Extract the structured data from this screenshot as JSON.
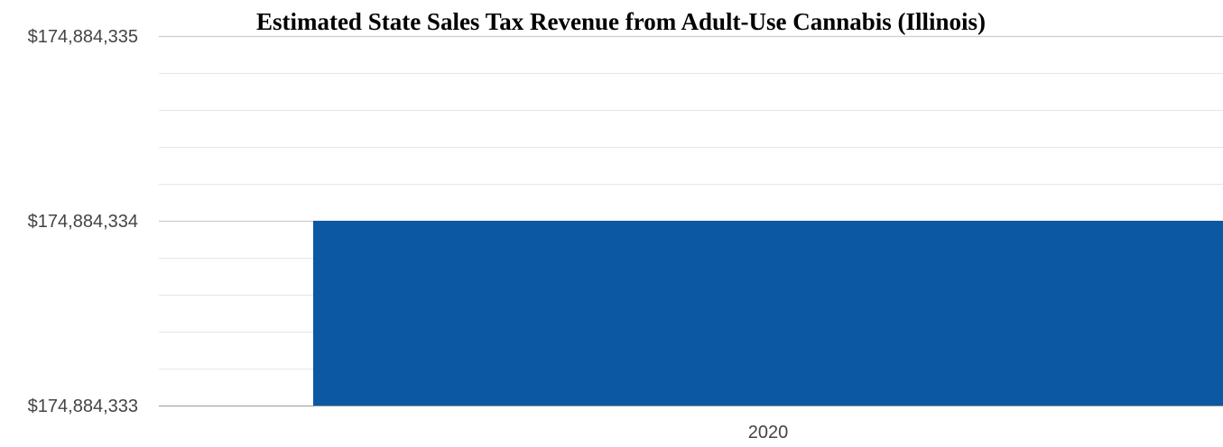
{
  "chart_data": {
    "type": "bar",
    "title": "Estimated State Sales Tax Revenue from Adult-Use Cannabis (Illinois)",
    "xlabel": "",
    "ylabel": "",
    "categories": [
      "2020"
    ],
    "values": [
      174884334
    ],
    "ylim": [
      174884333,
      174884335
    ],
    "y_tick_labels": [
      "$174,884,333",
      "$174,884,334",
      "$174,884,335"
    ],
    "grid": true,
    "legend": "none",
    "colors": {
      "bar": "#0d58a3"
    }
  }
}
